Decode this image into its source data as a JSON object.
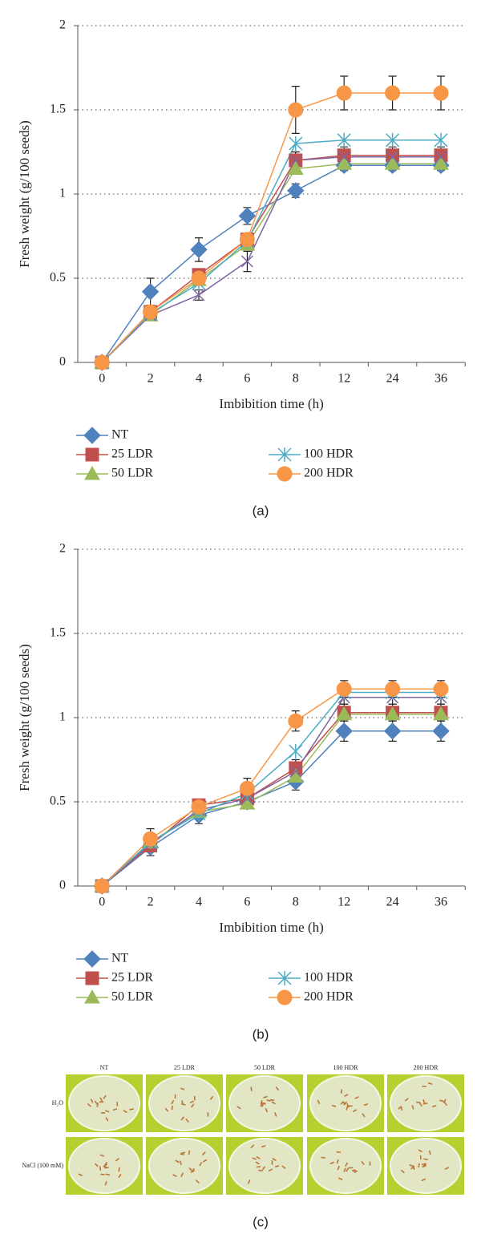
{
  "chart_data": [
    {
      "type": "line",
      "panel_label": "(a)",
      "x_label": "Imbibition time (h)",
      "y_label": "Fresh weight (g/100 seeds)",
      "categories": [
        "0",
        "2",
        "4",
        "6",
        "8",
        "12",
        "24",
        "36"
      ],
      "ylim": [
        0,
        2
      ],
      "yticks": [
        0,
        0.5,
        1,
        1.5,
        2
      ],
      "grid": true,
      "series": [
        {
          "name": "NT",
          "color": "#4f81bd",
          "marker": "diamond",
          "values": [
            0,
            0.42,
            0.67,
            0.87,
            1.02,
            1.17,
            1.17,
            1.17
          ],
          "errors": [
            0,
            0.08,
            0.07,
            0.05,
            0.04,
            0.03,
            0.03,
            0.03
          ]
        },
        {
          "name": "25 LDR",
          "color": "#c0504d",
          "marker": "square",
          "values": [
            0,
            0.3,
            0.52,
            0.73,
            1.2,
            1.23,
            1.23,
            1.23
          ],
          "errors": [
            0,
            0.02,
            0.03,
            0.03,
            0.05,
            0.05,
            0.05,
            0.05
          ]
        },
        {
          "name": "50 LDR",
          "color": "#9bbb59",
          "marker": "triangle",
          "values": [
            0,
            0.28,
            0.49,
            0.7,
            1.15,
            1.18,
            1.18,
            1.18
          ]
        },
        {
          "color": "#8064a2",
          "marker": "x",
          "values": [
            0,
            0.28,
            0.4,
            0.6,
            1.2,
            1.22,
            1.22,
            1.22
          ],
          "errors": [
            0,
            0.02,
            0.03,
            0.06,
            0.05,
            0.03,
            0.03,
            0.03
          ]
        },
        {
          "name": "100 HDR",
          "color": "#4bacc6",
          "marker": "asterisk",
          "values": [
            0,
            0.29,
            0.47,
            0.72,
            1.3,
            1.32,
            1.32,
            1.32
          ]
        },
        {
          "name": "200 HDR",
          "color": "#f79646",
          "marker": "circle",
          "values": [
            0,
            0.3,
            0.5,
            0.73,
            1.5,
            1.6,
            1.6,
            1.6
          ],
          "errors": [
            0,
            0.02,
            0.03,
            0.03,
            0.14,
            0.1,
            0.1,
            0.1
          ]
        }
      ]
    },
    {
      "type": "line",
      "panel_label": "(b)",
      "x_label": "Imbibition time (h)",
      "y_label": "Fresh weight (g/100 seeds)",
      "categories": [
        "0",
        "2",
        "4",
        "6",
        "8",
        "12",
        "24",
        "36"
      ],
      "ylim": [
        0,
        2
      ],
      "yticks": [
        0,
        0.5,
        1,
        1.5,
        2
      ],
      "grid": true,
      "series": [
        {
          "name": "NT",
          "color": "#4f81bd",
          "marker": "diamond",
          "values": [
            0,
            0.23,
            0.42,
            0.5,
            0.62,
            0.92,
            0.92,
            0.92
          ],
          "errors": [
            0,
            0.05,
            0.05,
            0.04,
            0.05,
            0.06,
            0.06,
            0.06
          ]
        },
        {
          "name": "25 LDR",
          "color": "#c0504d",
          "marker": "square",
          "values": [
            0,
            0.24,
            0.48,
            0.52,
            0.7,
            1.03,
            1.03,
            1.03
          ],
          "errors": [
            0,
            0.03,
            0.03,
            0.04,
            0.05,
            0.05,
            0.05,
            0.05
          ]
        },
        {
          "name": "50 LDR",
          "color": "#9bbb59",
          "marker": "triangle",
          "values": [
            0,
            0.26,
            0.44,
            0.49,
            0.65,
            1.02,
            1.02,
            1.02
          ]
        },
        {
          "color": "#8064a2",
          "marker": "x",
          "values": [
            0,
            0.25,
            0.45,
            0.52,
            0.68,
            1.12,
            1.12,
            1.12
          ],
          "errors": [
            0,
            0.03,
            0.03,
            0.04,
            0.05,
            0.04,
            0.04,
            0.04
          ]
        },
        {
          "name": "100 HDR",
          "color": "#4bacc6",
          "marker": "asterisk",
          "values": [
            0,
            0.26,
            0.43,
            0.55,
            0.8,
            1.15,
            1.15,
            1.15
          ]
        },
        {
          "name": "200 HDR",
          "color": "#f79646",
          "marker": "circle",
          "values": [
            0,
            0.28,
            0.47,
            0.58,
            0.98,
            1.17,
            1.17,
            1.17
          ],
          "errors": [
            0,
            0.06,
            0.03,
            0.06,
            0.06,
            0.05,
            0.05,
            0.05
          ]
        }
      ]
    }
  ],
  "photo_panel": {
    "columns": [
      "NT",
      "25 LDR",
      "50 LDR",
      "100 HDR",
      "200 HDR"
    ],
    "rows": [
      "H₂O",
      "NaCl (100 mM)"
    ],
    "panel_label": "(c)"
  }
}
